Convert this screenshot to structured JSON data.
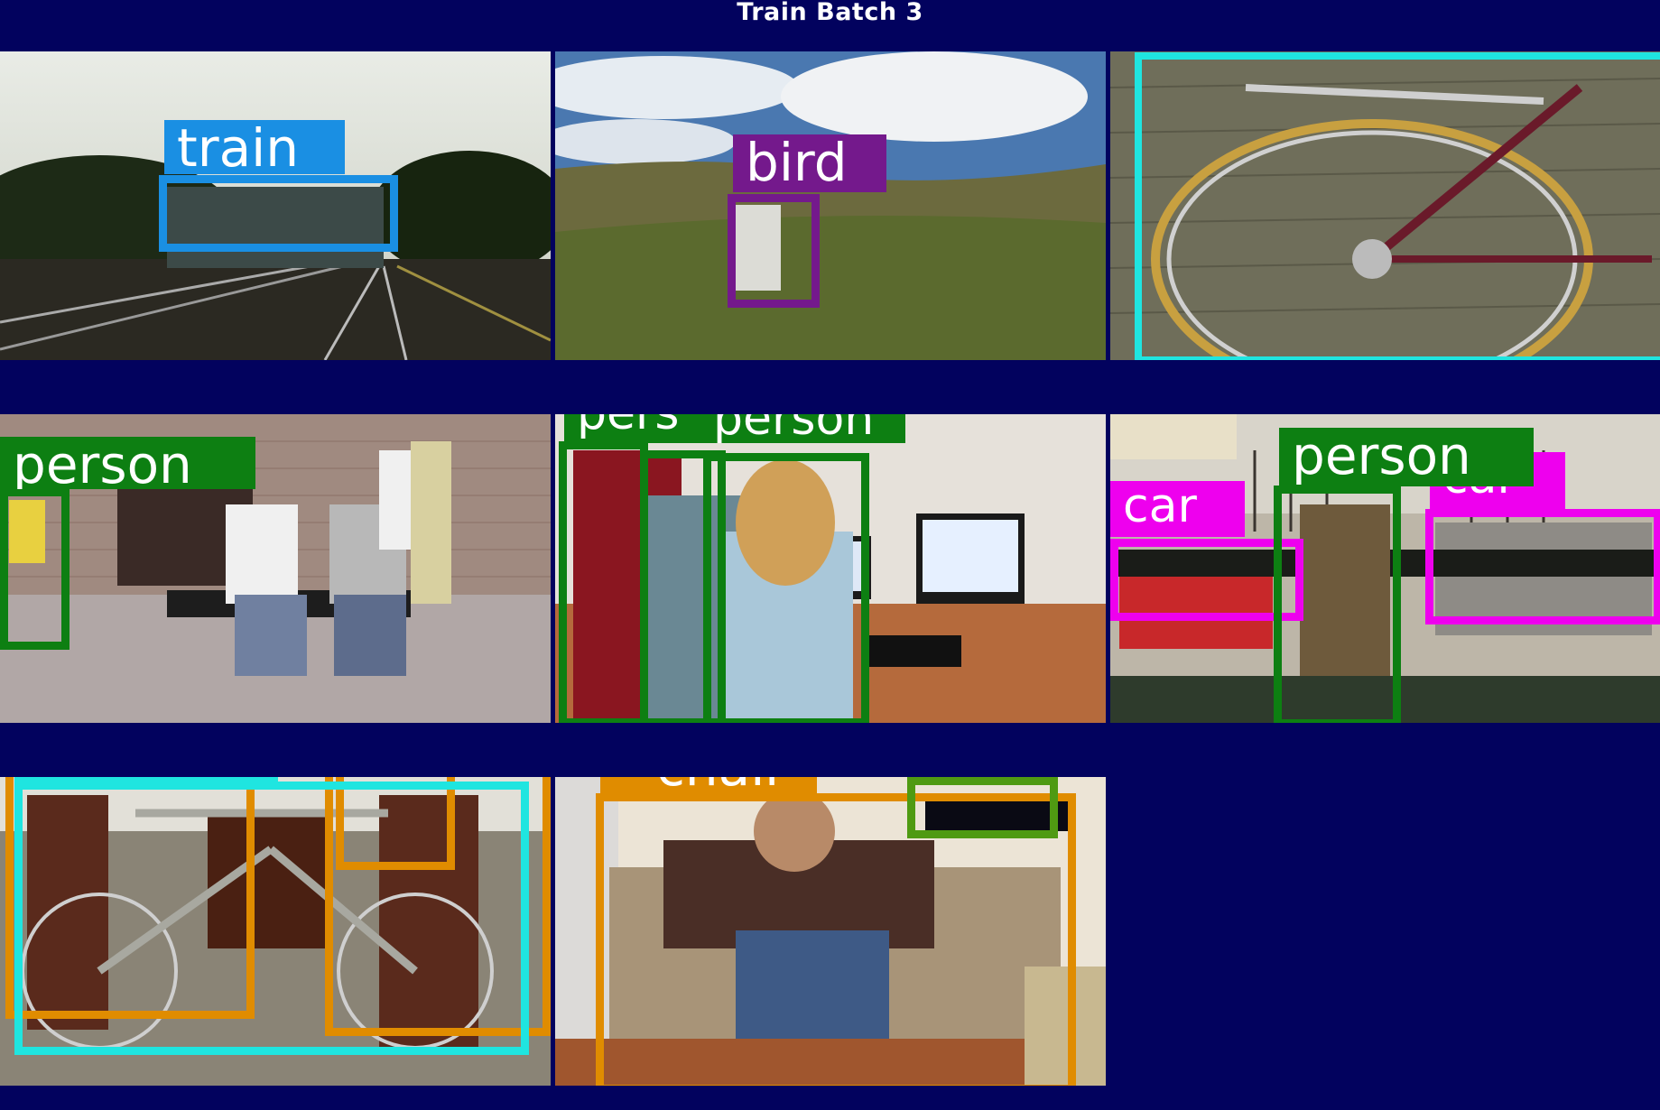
{
  "title": "Train Batch 3",
  "colors": {
    "background": "#02025e",
    "train": "#1a8fe3",
    "bird": "#74198c",
    "bicycle": "#1fe5e0",
    "person": "#0d7f12",
    "car": "#ee00ee",
    "chair": "#e08c00",
    "tvmonitor": "#4f9a12"
  },
  "tiles": [
    {
      "scene": "railway tracks with approaching train",
      "labels": [
        "train"
      ]
    },
    {
      "scene": "grassy hillside with bird",
      "labels": [
        "bird"
      ]
    },
    {
      "scene": "bicycle rear wheel against siding",
      "labels": []
    },
    {
      "scene": "people sitting on a street bench",
      "labels": [
        "person"
      ]
    },
    {
      "scene": "people at computer desks",
      "labels": [
        "person",
        "person"
      ]
    },
    {
      "scene": "bus stop with cars and person",
      "labels": [
        "car",
        "person",
        "car"
      ]
    },
    {
      "scene": "bicycle between chairs",
      "labels": [
        "bicycle"
      ]
    },
    {
      "scene": "woman reclining in armchair",
      "labels": [
        "chair"
      ]
    }
  ]
}
